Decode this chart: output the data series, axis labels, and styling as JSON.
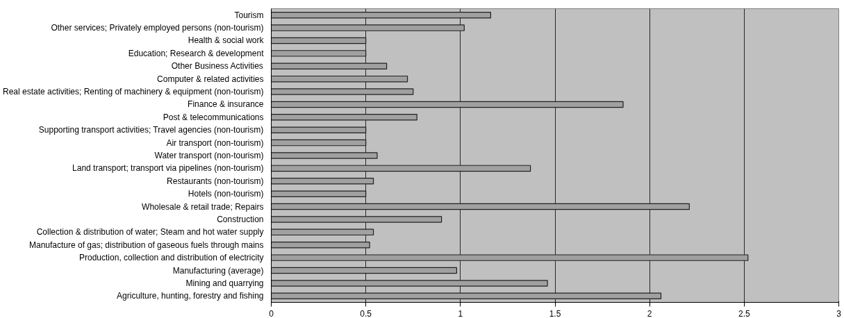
{
  "chart_data": {
    "type": "bar",
    "orientation": "horizontal",
    "categories": [
      "Tourism",
      "Other services; Privately employed persons (non-tourism)",
      "Health & social work",
      "Education; Research & development",
      "Other Business Activities",
      "Computer & related activities",
      "Real estate activities; Renting of machinery & equipment (non-tourism)",
      "Finance & insurance",
      "Post & telecommunications",
      "Supporting transport activities; Travel agencies (non-tourism)",
      "Air transport (non-tourism)",
      "Water transport (non-tourism)",
      "Land transport; transport via pipelines (non-tourism)",
      "Restaurants (non-tourism)",
      "Hotels (non-tourism)",
      "Wholesale & retail trade; Repairs",
      "Construction",
      "Collection & distribution of water; Steam and hot water supply",
      "Manufacture of gas; distribution of gaseous fuels through mains",
      "Production, collection and distribution of electricity",
      "Manufacturing (average)",
      "Mining and quarrying",
      "Agriculture, hunting, forestry and fishing"
    ],
    "values": [
      1.16,
      1.02,
      0.5,
      0.5,
      0.61,
      0.72,
      0.75,
      1.86,
      0.77,
      0.5,
      0.5,
      0.56,
      1.37,
      0.54,
      0.5,
      2.21,
      0.9,
      0.54,
      0.52,
      2.52,
      0.98,
      1.46,
      2.06
    ],
    "color": "#a0a0a0",
    "xlim": [
      0,
      3
    ],
    "xticks": [
      0,
      0.5,
      1,
      1.5,
      2,
      2.5,
      3
    ],
    "grid": "x"
  }
}
